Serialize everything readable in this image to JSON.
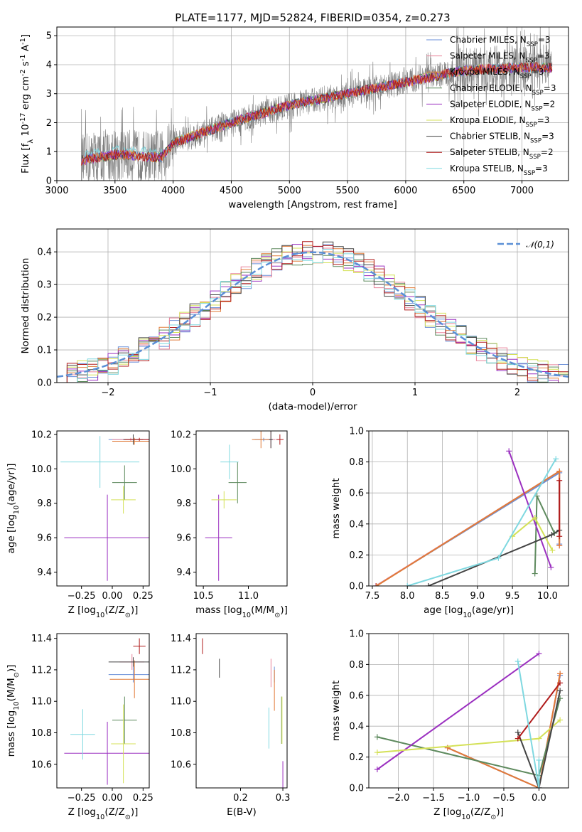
{
  "chart_data": [
    {
      "id": "spectrum",
      "type": "line",
      "title": "PLATE=1177, MJD=52824, FIBERID=0354, z=0.273",
      "xlabel": "wavelength [Angstrom, rest frame]",
      "ylabel": "Flux [f$_\\lambda$ 10$^{-17}$ erg cm$^{-2}$ s$^{-1}$ A$^{-1}$]",
      "xlim": [
        3000,
        7400
      ],
      "ylim": [
        0,
        5.3
      ],
      "xticks": [
        "3000",
        "3500",
        "4000",
        "4500",
        "5000",
        "5500",
        "6000",
        "6500",
        "7000"
      ],
      "yticks": [
        "0",
        "1",
        "2",
        "3",
        "4",
        "5"
      ],
      "grid": true,
      "legend_position": "right",
      "observed": {
        "color": "#808080",
        "x_range": [
          3210,
          7260
        ],
        "continuum": [
          [
            3210,
            0.7
          ],
          [
            3500,
            0.9
          ],
          [
            3900,
            0.8
          ],
          [
            4000,
            1.3
          ],
          [
            4500,
            2.0
          ],
          [
            5000,
            2.6
          ],
          [
            5500,
            3.0
          ],
          [
            6000,
            3.4
          ],
          [
            6500,
            3.8
          ],
          [
            7000,
            3.9
          ],
          [
            7260,
            3.9
          ]
        ]
      },
      "series": [
        {
          "name": "Chabrier MILES, N$_{SSP}$=3",
          "color": "#6a8fd8"
        },
        {
          "name": "Salpeter MILES, N$_{SSP}$=3",
          "color": "#e8829a"
        },
        {
          "name": "Kroupa MILES, N$_{SSP}$=3",
          "color": "#e07b39"
        },
        {
          "name": "Chabrier ELODIE, N$_{SSP}$=3",
          "color": "#5e8a5e"
        },
        {
          "name": "Salpeter ELODIE, N$_{SSP}$=2",
          "color": "#9b30c0"
        },
        {
          "name": "Kroupa ELODIE, N$_{SSP}$=3",
          "color": "#d4e157"
        },
        {
          "name": "Chabrier STELIB, N$_{SSP}$=3",
          "color": "#444444"
        },
        {
          "name": "Salpeter STELIB, N$_{SSP}$=2",
          "color": "#b01c1c"
        },
        {
          "name": "Kroupa STELIB, N$_{SSP}$=3",
          "color": "#7fd8e0"
        }
      ]
    },
    {
      "id": "residuals",
      "type": "line",
      "xlabel": "(data-model)/error",
      "ylabel": "Normed distribution",
      "xlim": [
        -2.5,
        2.5
      ],
      "ylim": [
        0,
        0.47
      ],
      "xticks": [
        "−2",
        "−1",
        "0",
        "1",
        "2"
      ],
      "yticks": [
        "0.0",
        "0.1",
        "0.2",
        "0.3",
        "0.4"
      ],
      "grid": true,
      "gaussian_legend": "$\\mathcal{N}(0,1)$",
      "legend_position": "top-right",
      "gaussian_color": "#5b8fd6"
    },
    {
      "id": "age_vs_z",
      "type": "scatter",
      "xlabel": "Z [log$_{10}$(Z/Z$_\\odot$)]",
      "ylabel": "age  [log$_{10}$(age/yr)]",
      "xlim": [
        -0.45,
        0.3
      ],
      "ylim": [
        9.32,
        10.22
      ],
      "xticks": [
        "−0.25",
        "0.00",
        "0.25"
      ],
      "yticks": [
        "9.4",
        "9.6",
        "9.8",
        "10.0",
        "10.2"
      ],
      "points": [
        {
          "series": 0,
          "x": 0.17,
          "y": 10.17,
          "xerr": 0.2,
          "yerr": 0.01
        },
        {
          "series": 1,
          "x": 0.15,
          "y": 10.17,
          "xerr": 0.15,
          "yerr": 0.01
        },
        {
          "series": 2,
          "x": 0.18,
          "y": 10.16,
          "xerr": 0.18,
          "yerr": 0.02
        },
        {
          "series": 3,
          "x": 0.1,
          "y": 9.92,
          "xerr": 0.1,
          "yerr": 0.1
        },
        {
          "series": 4,
          "x": -0.04,
          "y": 9.6,
          "xerr": 0.35,
          "yerr": 0.25
        },
        {
          "series": 5,
          "x": 0.09,
          "y": 9.82,
          "xerr": 0.1,
          "yerr": 0.08
        },
        {
          "series": 6,
          "x": 0.17,
          "y": 10.17,
          "xerr": 0.08,
          "yerr": 0.03
        },
        {
          "series": 7,
          "x": 0.22,
          "y": 10.17,
          "xerr": 0.12,
          "yerr": 0.01
        },
        {
          "series": 8,
          "x": -0.1,
          "y": 10.04,
          "xerr": 0.32,
          "yerr": 0.15
        }
      ]
    },
    {
      "id": "age_vs_mass",
      "type": "scatter",
      "xlabel": "mass [log$_{10}$(M/M$_\\odot$)]",
      "ylabel": "",
      "xlim": [
        10.42,
        11.43
      ],
      "ylim": [
        9.32,
        10.22
      ],
      "xticks": [
        "10.5",
        "11.0"
      ],
      "yticks": [
        "9.4",
        "9.6",
        "9.8",
        "10.0",
        "10.2"
      ],
      "points": [
        {
          "series": 0,
          "x": 11.17,
          "y": 10.17,
          "xerr": 0.1,
          "yerr": 0.01
        },
        {
          "series": 1,
          "x": 11.25,
          "y": 10.17,
          "xerr": 0.05,
          "yerr": 0.05
        },
        {
          "series": 2,
          "x": 11.14,
          "y": 10.17,
          "xerr": 0.1,
          "yerr": 0.05
        },
        {
          "series": 3,
          "x": 10.88,
          "y": 9.92,
          "xerr": 0.1,
          "yerr": 0.12
        },
        {
          "series": 4,
          "x": 10.67,
          "y": 9.6,
          "xerr": 0.15,
          "yerr": 0.25
        },
        {
          "series": 5,
          "x": 10.73,
          "y": 9.82,
          "xerr": 0.14,
          "yerr": 0.05
        },
        {
          "series": 6,
          "x": 11.25,
          "y": 10.17,
          "xerr": 0.02,
          "yerr": 0.05
        },
        {
          "series": 7,
          "x": 11.35,
          "y": 10.17,
          "xerr": 0.04,
          "yerr": 0.03
        },
        {
          "series": 8,
          "x": 10.79,
          "y": 10.04,
          "xerr": 0.1,
          "yerr": 0.1
        }
      ]
    },
    {
      "id": "weight_vs_age",
      "type": "line",
      "xlabel": "age  [log$_{10}$(age/yr)]",
      "ylabel": "mass weight",
      "xlim": [
        7.45,
        10.3
      ],
      "ylim": [
        0,
        1.0
      ],
      "xticks": [
        "7.5",
        "8.0",
        "8.5",
        "9.0",
        "9.5",
        "10.0"
      ],
      "yticks": [
        "0.0",
        "0.2",
        "0.4",
        "0.6",
        "0.8",
        "1.0"
      ],
      "grid": true,
      "lines": [
        {
          "series": 0,
          "x": [
            7.55,
            10.17,
            10.17
          ],
          "y": [
            0.0,
            0.73,
            0.27
          ]
        },
        {
          "series": 1,
          "x": [
            7.55,
            10.17,
            10.17
          ],
          "y": [
            0.0,
            0.74,
            0.26
          ]
        },
        {
          "series": 2,
          "x": [
            7.56,
            10.17,
            10.17
          ],
          "y": [
            0.0,
            0.74,
            0.26
          ]
        },
        {
          "series": 3,
          "x": [
            9.82,
            9.85,
            10.1
          ],
          "y": [
            0.08,
            0.58,
            0.34
          ]
        },
        {
          "series": 4,
          "x": [
            9.45,
            10.05
          ],
          "y": [
            0.87,
            0.12
          ]
        },
        {
          "series": 5,
          "x": [
            9.5,
            9.82,
            10.07
          ],
          "y": [
            0.32,
            0.44,
            0.23
          ]
        },
        {
          "series": 6,
          "x": [
            8.3,
            10.06,
            10.17
          ],
          "y": [
            0.0,
            0.33,
            0.36
          ]
        },
        {
          "series": 7,
          "x": [
            10.17,
            10.17
          ],
          "y": [
            0.68,
            0.32
          ]
        },
        {
          "series": 8,
          "x": [
            8.0,
            9.3,
            10.12
          ],
          "y": [
            0.0,
            0.18,
            0.82
          ]
        }
      ]
    },
    {
      "id": "mass_vs_z",
      "type": "scatter",
      "xlabel": "Z [log$_{10}$(Z/Z$_\\odot$)]",
      "ylabel": "mass [log$_{10}$(M/M$_\\odot$)]",
      "xlim": [
        -0.45,
        0.3
      ],
      "ylim": [
        10.45,
        11.43
      ],
      "xticks": [
        "−0.25",
        "0.00",
        "0.25"
      ],
      "yticks": [
        "10.6",
        "10.8",
        "11.0",
        "11.2",
        "11.4"
      ],
      "points": [
        {
          "series": 0,
          "x": 0.17,
          "y": 11.17,
          "xerr": 0.2,
          "yerr": 0.05
        },
        {
          "series": 1,
          "x": 0.16,
          "y": 11.25,
          "xerr": 0.1,
          "yerr": 0.05
        },
        {
          "series": 2,
          "x": 0.18,
          "y": 11.14,
          "xerr": 0.2,
          "yerr": 0.12
        },
        {
          "series": 3,
          "x": 0.1,
          "y": 10.88,
          "xerr": 0.1,
          "yerr": 0.15
        },
        {
          "series": 4,
          "x": -0.04,
          "y": 10.67,
          "xerr": 0.35,
          "yerr": 0.2
        },
        {
          "series": 5,
          "x": 0.09,
          "y": 10.73,
          "xerr": 0.1,
          "yerr": 0.25
        },
        {
          "series": 6,
          "x": 0.17,
          "y": 11.25,
          "xerr": 0.2,
          "yerr": 0.03
        },
        {
          "series": 7,
          "x": 0.22,
          "y": 11.35,
          "xerr": 0.05,
          "yerr": 0.05
        },
        {
          "series": 8,
          "x": -0.24,
          "y": 10.79,
          "xerr": 0.1,
          "yerr": 0.16
        }
      ]
    },
    {
      "id": "mass_vs_ebv",
      "type": "scatter",
      "xlabel": "E(B-V)",
      "ylabel": "",
      "xlim": [
        0.095,
        0.31
      ],
      "ylim": [
        10.45,
        11.43
      ],
      "xticks": [
        "0.2",
        "0.3"
      ],
      "yticks": [
        "10.6",
        "10.8",
        "11.0",
        "11.2",
        "11.4"
      ],
      "points": [
        {
          "series": 0,
          "x": 0.28,
          "y": 11.17,
          "xerr": 0.0,
          "yerr": 0.05
        },
        {
          "series": 1,
          "x": 0.272,
          "y": 11.18,
          "xerr": 0.0,
          "yerr": 0.09
        },
        {
          "series": 2,
          "x": 0.28,
          "y": 11.07,
          "xerr": 0.0,
          "yerr": 0.13
        },
        {
          "series": 3,
          "x": 0.297,
          "y": 10.88,
          "xerr": 0.0,
          "yerr": 0.15
        },
        {
          "series": 4,
          "x": 0.3,
          "y": 10.52,
          "xerr": 0.0,
          "yerr": 0.1
        },
        {
          "series": 5,
          "x": 0.298,
          "y": 10.88,
          "xerr": 0.0,
          "yerr": 0.15
        },
        {
          "series": 6,
          "x": 0.15,
          "y": 11.21,
          "xerr": 0.0,
          "yerr": 0.06
        },
        {
          "series": 7,
          "x": 0.11,
          "y": 11.35,
          "xerr": 0.0,
          "yerr": 0.05
        },
        {
          "series": 8,
          "x": 0.267,
          "y": 10.83,
          "xerr": 0.0,
          "yerr": 0.13
        }
      ]
    },
    {
      "id": "weight_vs_z",
      "type": "line",
      "xlabel": "Z [log$_{10}$(Z/Z$_\\odot$)]",
      "ylabel": "mass weight",
      "xlim": [
        -2.42,
        0.42
      ],
      "ylim": [
        0,
        1.0
      ],
      "xticks": [
        "−2.0",
        "−1.5",
        "−1.0",
        "−0.5",
        "0.0"
      ],
      "yticks": [
        "0.0",
        "0.2",
        "0.4",
        "0.6",
        "0.8",
        "1.0"
      ],
      "grid": true,
      "lines": [
        {
          "series": 0,
          "x": [
            -1.3,
            0.0,
            0.3
          ],
          "y": [
            0.26,
            0.0,
            0.73
          ]
        },
        {
          "series": 1,
          "x": [
            -1.3,
            0.0,
            0.3
          ],
          "y": [
            0.26,
            0.0,
            0.74
          ]
        },
        {
          "series": 2,
          "x": [
            -1.3,
            0.0,
            0.3
          ],
          "y": [
            0.26,
            0.0,
            0.74
          ]
        },
        {
          "series": 3,
          "x": [
            -2.3,
            0.0,
            0.3
          ],
          "y": [
            0.33,
            0.08,
            0.58
          ]
        },
        {
          "series": 4,
          "x": [
            -2.3,
            0.0
          ],
          "y": [
            0.12,
            0.87
          ]
        },
        {
          "series": 5,
          "x": [
            -2.3,
            0.0,
            0.3
          ],
          "y": [
            0.23,
            0.32,
            0.44
          ]
        },
        {
          "series": 6,
          "x": [
            -0.3,
            0.0,
            0.3
          ],
          "y": [
            0.36,
            0.0,
            0.63
          ]
        },
        {
          "series": 7,
          "x": [
            -0.3,
            0.3
          ],
          "y": [
            0.32,
            0.68
          ]
        },
        {
          "series": 8,
          "x": [
            -0.3,
            0.0,
            0.0
          ],
          "y": [
            0.82,
            0.0,
            0.18
          ]
        }
      ]
    }
  ]
}
